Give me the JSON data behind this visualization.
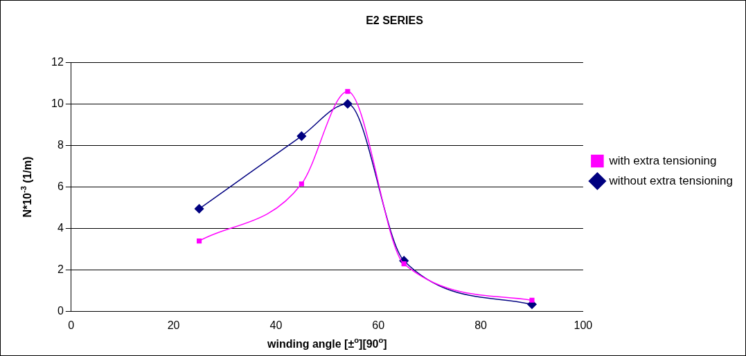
{
  "chart_data": {
    "type": "line",
    "title": "E2 SERIES",
    "xlabel": "winding angle [±$^{o}$][90$^{o}$]",
    "ylabel": "N*10$^{-3}$ (1/m)",
    "x": [
      25,
      45,
      54,
      65,
      90
    ],
    "series": [
      {
        "name": "without extra tensioning",
        "color": "#000080",
        "marker": "diamond",
        "values": [
          4.95,
          8.45,
          10.0,
          2.45,
          0.35
        ]
      },
      {
        "name": "with extra tensioning",
        "color": "#ff00ff",
        "marker": "square",
        "values": [
          3.4,
          6.15,
          10.6,
          2.3,
          0.55
        ]
      }
    ],
    "xlim": [
      0,
      100
    ],
    "xticks": [
      0,
      20,
      40,
      60,
      80,
      100
    ],
    "ylim": [
      0,
      12
    ],
    "yticks": [
      0,
      2,
      4,
      6,
      8,
      10,
      12
    ],
    "grid": "y",
    "legend": "right",
    "line_style": "solid"
  }
}
